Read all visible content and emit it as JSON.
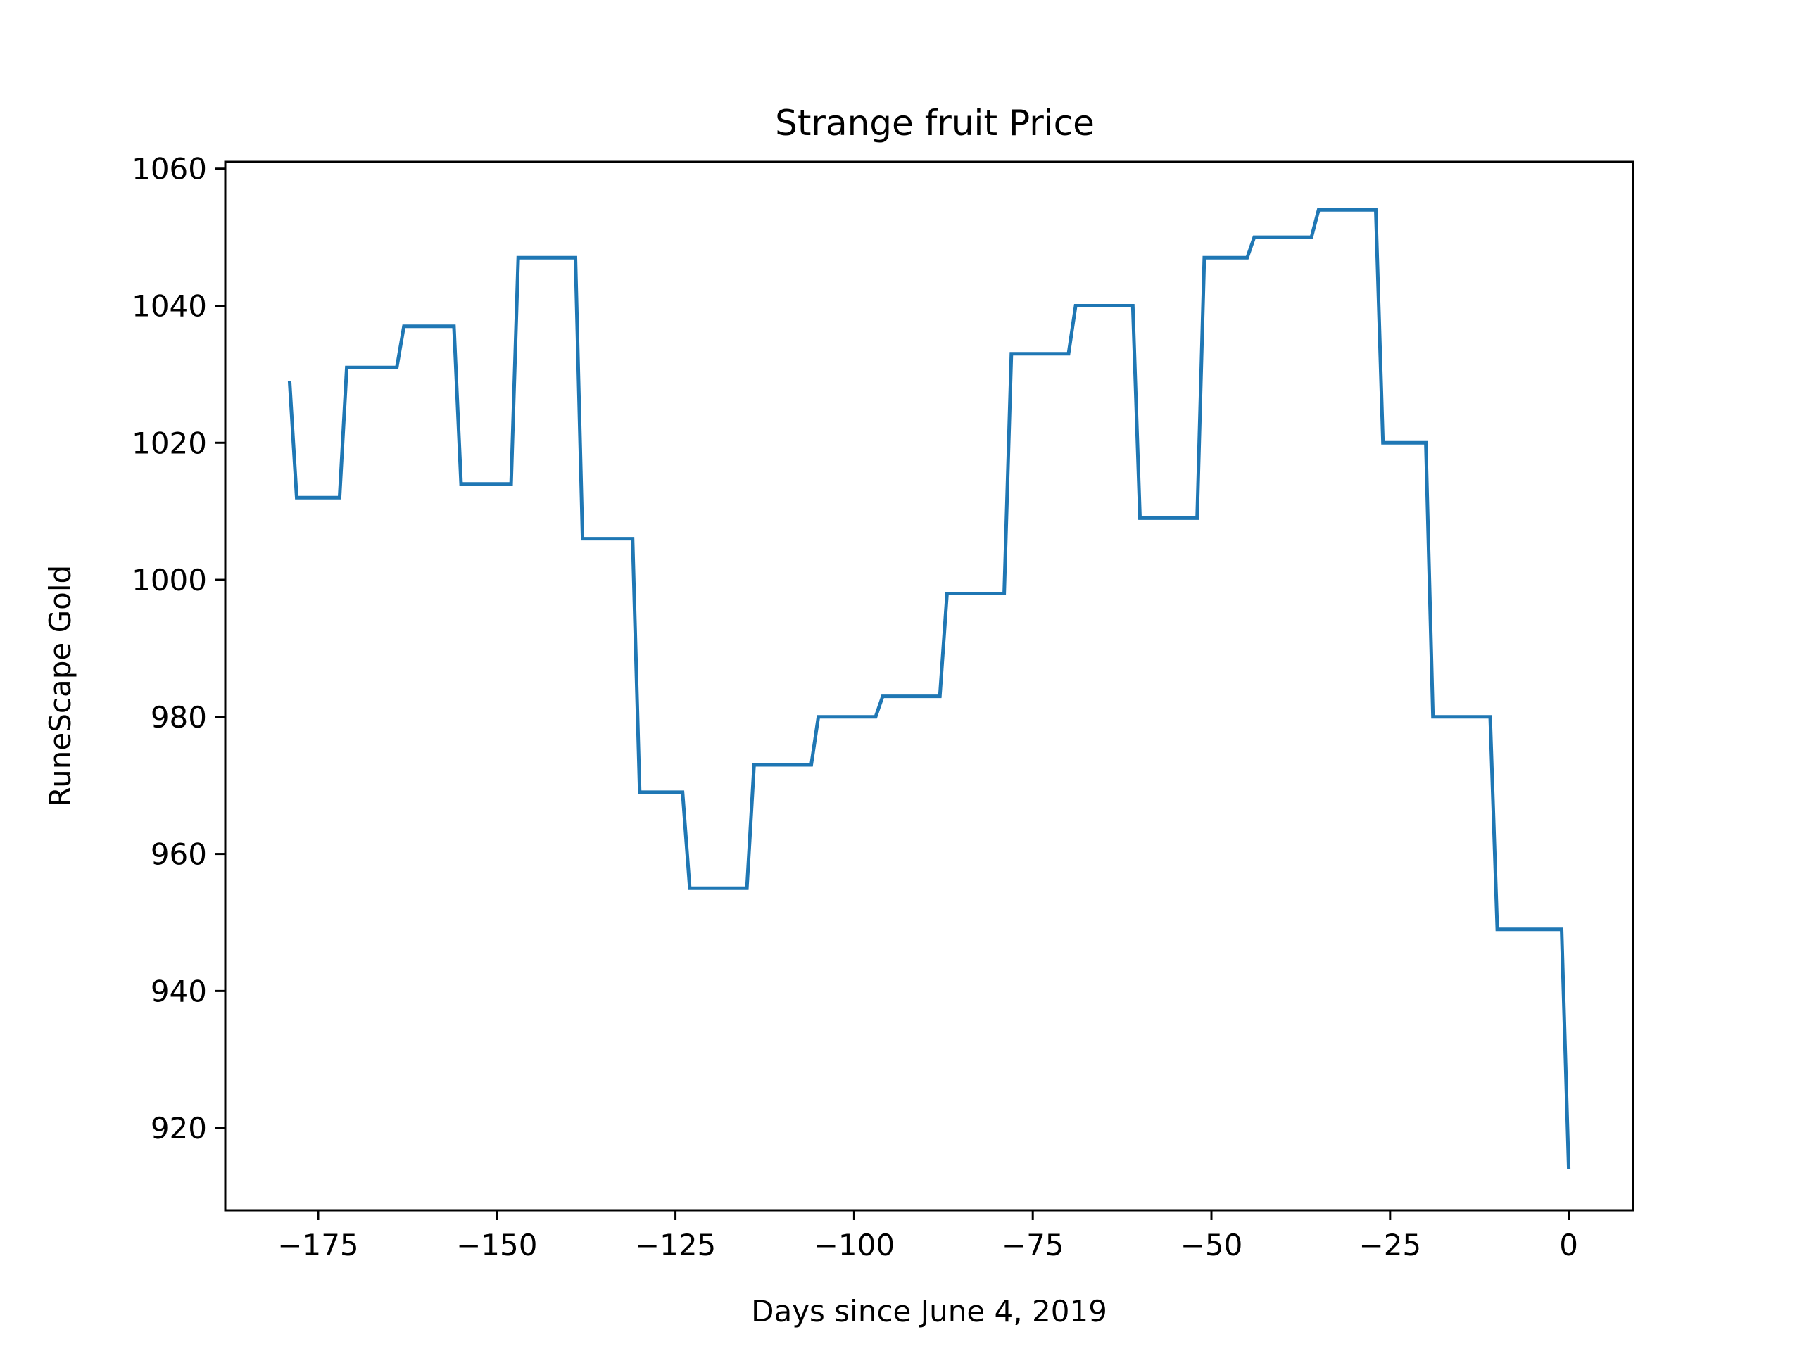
{
  "chart_data": {
    "type": "line",
    "title": "Strange fruit Price",
    "xlabel": "Days since June 4, 2019",
    "ylabel": "RuneScape Gold",
    "xlim": [
      -188,
      9
    ],
    "ylim": [
      908,
      1061
    ],
    "x_ticks": [
      -175,
      -150,
      -125,
      -100,
      -75,
      -50,
      -25,
      0
    ],
    "x_tick_labels": [
      "−175",
      "−150",
      "−125",
      "−100",
      "−75",
      "−50",
      "−25",
      "0"
    ],
    "y_ticks": [
      920,
      940,
      960,
      980,
      1000,
      1020,
      1040,
      1060
    ],
    "y_tick_labels": [
      "920",
      "940",
      "960",
      "980",
      "1000",
      "1020",
      "1040",
      "1060"
    ],
    "grid": false,
    "series": [
      {
        "name": "Strange fruit",
        "color": "#1f77b4",
        "x": [
          -179,
          -178,
          -172,
          -171,
          -164,
          -163,
          -156,
          -155,
          -148,
          -147,
          -139,
          -138,
          -131,
          -130,
          -124,
          -123,
          -115,
          -114,
          -106,
          -105,
          -97,
          -96,
          -88,
          -87,
          -79,
          -78,
          -70,
          -69,
          -61,
          -60,
          -52,
          -51,
          -45,
          -44,
          -36,
          -35,
          -27,
          -26,
          -20,
          -19,
          -11,
          -10,
          -1,
          0
        ],
        "y": [
          1029,
          1012,
          1012,
          1031,
          1031,
          1037,
          1037,
          1014,
          1014,
          1047,
          1047,
          1006,
          1006,
          969,
          969,
          955,
          955,
          973,
          973,
          980,
          980,
          983,
          983,
          998,
          998,
          1033,
          1033,
          1040,
          1040,
          1009,
          1009,
          1047,
          1047,
          1050,
          1050,
          1054,
          1054,
          1020,
          1020,
          980,
          980,
          949,
          949,
          914
        ]
      }
    ]
  }
}
